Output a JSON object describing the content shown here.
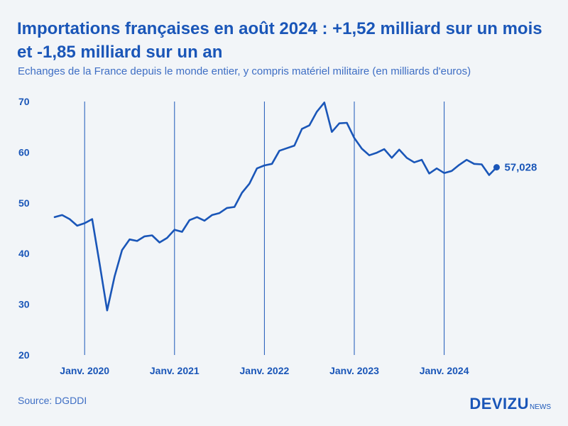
{
  "header": {
    "title": "Importations françaises en août 2024 : +1,52 milliard sur un mois et -1,85 milliard sur un an",
    "subtitle": "Echanges de la France depuis le monde entier, y compris matériel militaire (en milliards d'euros)"
  },
  "footer": {
    "source": "Source: DGDDI",
    "brand_main": "DEVIZU",
    "brand_sub": "NEWS"
  },
  "colors": {
    "line": "#1a56b8",
    "text": "#1a56b8",
    "subtext": "#3e6ec4",
    "background": "#f2f5f8"
  },
  "chart_data": {
    "type": "line",
    "title": "Importations françaises en août 2024 : +1,52 milliard sur un mois et -1,85 milliard sur un an",
    "subtitle": "Echanges de la France depuis le monde entier, y compris matériel militaire (en milliards d'euros)",
    "xlabel": "",
    "ylabel": "",
    "ylim": [
      20,
      70
    ],
    "yticks": [
      20,
      30,
      40,
      50,
      60,
      70
    ],
    "grid": "vertical lines at each January",
    "x_start": "2019-09",
    "x_end": "2024-08",
    "x_ticks": [
      {
        "label": "Janv. 2020",
        "index": 4
      },
      {
        "label": "Janv. 2021",
        "index": 16
      },
      {
        "label": "Janv. 2022",
        "index": 28
      },
      {
        "label": "Janv. 2023",
        "index": 40
      },
      {
        "label": "Janv. 2024",
        "index": 52
      }
    ],
    "series": [
      {
        "name": "Importations",
        "values": [
          47.2,
          47.6,
          46.8,
          45.5,
          46.0,
          46.8,
          38.0,
          28.8,
          35.5,
          40.7,
          42.8,
          42.5,
          43.4,
          43.6,
          42.2,
          43.1,
          44.7,
          44.3,
          46.6,
          47.2,
          46.5,
          47.6,
          48.0,
          49.0,
          49.2,
          52.0,
          53.8,
          56.8,
          57.4,
          57.7,
          60.3,
          60.8,
          61.3,
          64.6,
          65.3,
          68.0,
          69.8,
          64.0,
          65.7,
          65.8,
          62.8,
          60.7,
          59.4,
          59.9,
          60.6,
          58.9,
          60.5,
          58.9,
          58.0,
          58.5,
          55.8,
          56.8,
          55.9,
          56.3,
          57.5,
          58.5,
          57.7,
          57.6,
          55.5,
          57.028
        ]
      }
    ],
    "annotations": [
      {
        "label": "57,028",
        "x_index": 59,
        "value": 57.028
      }
    ]
  }
}
